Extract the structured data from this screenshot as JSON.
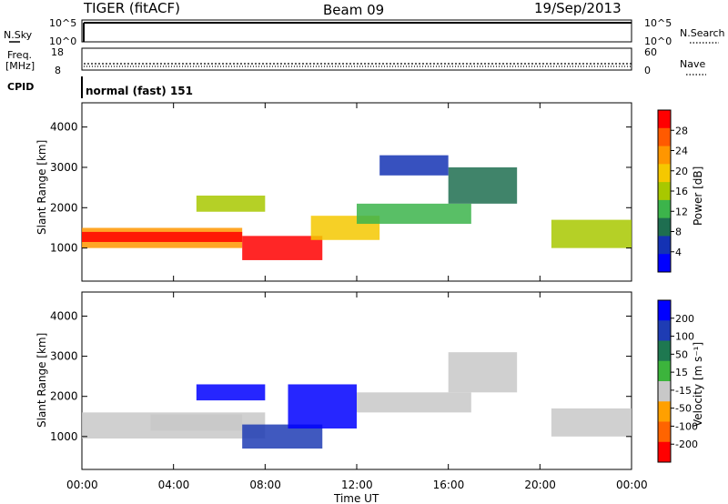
{
  "header": {
    "radar": "TIGER (fitACF)",
    "beam": "Beam 09",
    "date": "19/Sep/2013"
  },
  "nsky": {
    "label": "N.Sky",
    "ticks": [
      "10^5",
      "10^0"
    ],
    "right_ticks": [
      "10^5",
      "10^0"
    ],
    "right_label": "N.Search"
  },
  "freq": {
    "label_line1": "Freq.",
    "label_line2": "[MHz]",
    "ticks": [
      "18",
      "8"
    ],
    "right_ticks": [
      "60",
      "0"
    ],
    "right_label": "Nave"
  },
  "cpid": {
    "label": "CPID",
    "text": "normal (fast) 151"
  },
  "xaxis": {
    "label": "Time UT",
    "ticks": [
      "00:00",
      "04:00",
      "08:00",
      "12:00",
      "16:00",
      "20:00",
      "00:00"
    ]
  },
  "power_panel": {
    "ylabel": "Slant Range [km]",
    "yticks": [
      "4000",
      "3000",
      "2000",
      "1000"
    ],
    "colorbar_label": "Power [dB]",
    "colorbar_ticks": [
      "28",
      "24",
      "20",
      "16",
      "12",
      "8",
      "4"
    ],
    "colorbar_colors": [
      "#ff0000",
      "#ff5a00",
      "#ff9600",
      "#f5c800",
      "#a8c800",
      "#3cb44b",
      "#1e6e50",
      "#1432b4",
      "#0000ff"
    ]
  },
  "velocity_panel": {
    "ylabel": "Slant Range [km]",
    "yticks": [
      "4000",
      "3000",
      "2000",
      "1000"
    ],
    "colorbar_label": "Velocity [m s⁻¹]",
    "colorbar_ticks": [
      "200",
      "100",
      "50",
      "15",
      "-15",
      "-50",
      "-100",
      "-200"
    ],
    "colorbar_colors": [
      "#0000ff",
      "#1e3cb4",
      "#1e7850",
      "#3cb43c",
      "#c8c8c8",
      "#ffa000",
      "#ff6400",
      "#ff0000"
    ]
  },
  "chart_data": {
    "type": "heatmap",
    "title": "TIGER (fitACF) Beam 09 19/Sep/2013",
    "xlabel": "Time UT",
    "x_range_hours": [
      0,
      24
    ],
    "ylabel": "Slant Range [km]",
    "ylim": [
      180,
      4600
    ],
    "panels": [
      {
        "name": "Power [dB]",
        "colorbar_range": [
          0,
          30
        ],
        "regions": [
          {
            "t0": 0,
            "t1": 7,
            "r0": 1000,
            "r1": 1500,
            "level": 22
          },
          {
            "t0": 0,
            "t1": 7,
            "r0": 1150,
            "r1": 1400,
            "level": 27
          },
          {
            "t0": 7,
            "t1": 10.5,
            "r0": 700,
            "r1": 1300,
            "level": 28
          },
          {
            "t0": 10,
            "t1": 13,
            "r0": 1200,
            "r1": 1800,
            "level": 20
          },
          {
            "t0": 12,
            "t1": 17,
            "r0": 1600,
            "r1": 2100,
            "level": 12
          },
          {
            "t0": 16,
            "t1": 19,
            "r0": 2100,
            "r1": 3000,
            "level": 8
          },
          {
            "t0": 20.5,
            "t1": 24,
            "r0": 1000,
            "r1": 1700,
            "level": 14
          },
          {
            "t0": 5,
            "t1": 8,
            "r0": 1900,
            "r1": 2300,
            "level": 16
          },
          {
            "t0": 13,
            "t1": 16,
            "r0": 2800,
            "r1": 3300,
            "level": 6
          }
        ]
      },
      {
        "name": "Velocity [m s-1]",
        "colorbar_range": [
          -250,
          250
        ],
        "regions": [
          {
            "t0": 0,
            "t1": 8,
            "r0": 950,
            "r1": 1600,
            "level": 0
          },
          {
            "t0": 3,
            "t1": 7,
            "r0": 1150,
            "r1": 1550,
            "level": -40
          },
          {
            "t0": 7,
            "t1": 10.5,
            "r0": 700,
            "r1": 1300,
            "level": 180
          },
          {
            "t0": 9,
            "t1": 12,
            "r0": 1200,
            "r1": 2300,
            "level": 200
          },
          {
            "t0": 12,
            "t1": 17,
            "r0": 1600,
            "r1": 2100,
            "level": 0
          },
          {
            "t0": 16,
            "t1": 19,
            "r0": 2100,
            "r1": 3100,
            "level": 0
          },
          {
            "t0": 20.5,
            "t1": 24,
            "r0": 1000,
            "r1": 1700,
            "level": 0
          },
          {
            "t0": 5,
            "t1": 8,
            "r0": 1900,
            "r1": 2300,
            "level": 220
          }
        ]
      }
    ]
  }
}
